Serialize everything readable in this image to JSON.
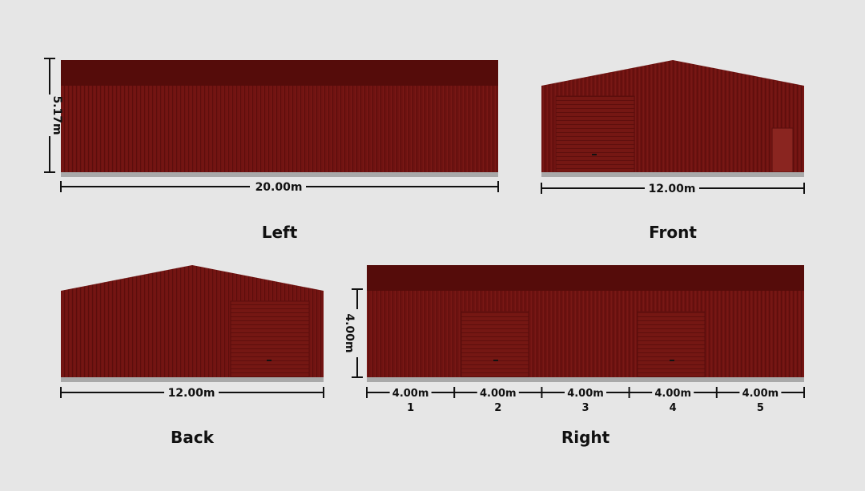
{
  "colors": {
    "background": "#e6e6e6",
    "wall": "#6f1210",
    "wall_dark": "#5a0d0c",
    "roof_band": "#550c0a",
    "door": "#7a1a16",
    "base": "#a9a9a9",
    "dimension": "#111111"
  },
  "views": {
    "left": {
      "title": "Left",
      "width_label": "20.00m",
      "height_label": "5.17m"
    },
    "front": {
      "title": "Front",
      "width_label": "12.00m"
    },
    "back": {
      "title": "Back",
      "width_label": "12.00m"
    },
    "right": {
      "title": "Right",
      "height_label": "4.00m",
      "bays": [
        {
          "label": "4.00m",
          "number": "1"
        },
        {
          "label": "4.00m",
          "number": "2"
        },
        {
          "label": "4.00m",
          "number": "3"
        },
        {
          "label": "4.00m",
          "number": "4"
        },
        {
          "label": "4.00m",
          "number": "5"
        }
      ]
    }
  }
}
